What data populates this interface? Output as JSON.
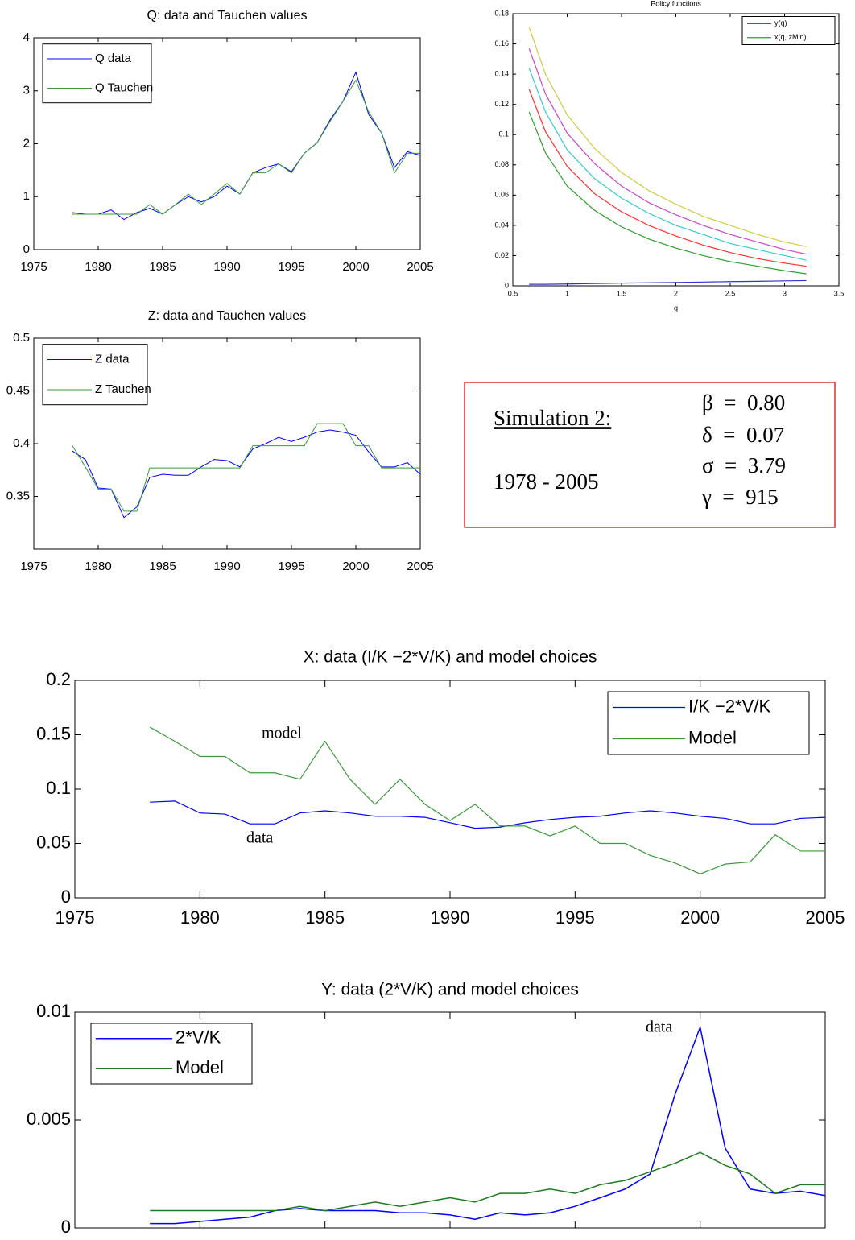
{
  "chart_data": [
    {
      "type": "line",
      "title": "Q: data and Tauchen values",
      "x": [
        1978,
        1979,
        1980,
        1981,
        1982,
        1983,
        1984,
        1985,
        1986,
        1987,
        1988,
        1989,
        1990,
        1991,
        1992,
        1993,
        1994,
        1995,
        1996,
        1997,
        1998,
        1999,
        2000,
        2001,
        2002,
        2003,
        2004,
        2005
      ],
      "series": [
        {
          "name": "Q data",
          "color": "#0000ff",
          "values": [
            0.7,
            0.67,
            0.67,
            0.75,
            0.57,
            0.7,
            0.78,
            0.67,
            0.85,
            1.0,
            0.9,
            1.0,
            1.2,
            1.05,
            1.45,
            1.55,
            1.62,
            1.47,
            1.82,
            2.02,
            2.45,
            2.8,
            3.35,
            2.55,
            2.2,
            1.55,
            1.85,
            1.78
          ]
        },
        {
          "name": "Q Tauchen",
          "color": "#3a9a3a",
          "values": [
            0.67,
            0.67,
            0.67,
            0.67,
            0.67,
            0.67,
            0.85,
            0.67,
            0.85,
            1.05,
            0.85,
            1.05,
            1.25,
            1.05,
            1.45,
            1.45,
            1.62,
            1.45,
            1.82,
            2.02,
            2.42,
            2.8,
            3.2,
            2.6,
            2.2,
            1.45,
            1.82,
            1.82
          ]
        }
      ],
      "xlim": [
        1975,
        2005
      ],
      "xticks": [
        1975,
        1980,
        1985,
        1990,
        1995,
        2000,
        2005
      ],
      "ylim": [
        0,
        4
      ],
      "yticks": [
        0,
        1,
        2,
        3,
        4
      ],
      "legend": "upper left",
      "grid": false
    },
    {
      "type": "line",
      "title": "Policy functions",
      "x_label": "q",
      "x": [
        0.65,
        0.8,
        1,
        1.25,
        1.5,
        1.75,
        2,
        2.25,
        2.5,
        2.75,
        3,
        3.2
      ],
      "series": [
        {
          "name": "y(q)",
          "color": "#3333cc",
          "values": [
            0.001,
            0.001,
            0.0012,
            0.0015,
            0.0018,
            0.002,
            0.0022,
            0.0025,
            0.0028,
            0.003,
            0.0033,
            0.0035
          ]
        },
        {
          "name": "x(q, zMin)",
          "color": "#2e9e2e",
          "values": [
            0.115,
            0.088,
            0.066,
            0.05,
            0.039,
            0.031,
            0.025,
            0.02,
            0.016,
            0.013,
            0.01,
            0.008
          ]
        },
        {
          "color": "#ff3030",
          "values": [
            0.13,
            0.102,
            0.079,
            0.061,
            0.049,
            0.04,
            0.033,
            0.027,
            0.022,
            0.018,
            0.015,
            0.013
          ]
        },
        {
          "color": "#33cccc",
          "values": [
            0.144,
            0.115,
            0.09,
            0.071,
            0.058,
            0.048,
            0.04,
            0.034,
            0.028,
            0.024,
            0.02,
            0.017
          ]
        },
        {
          "color": "#cc44cc",
          "values": [
            0.157,
            0.127,
            0.101,
            0.081,
            0.066,
            0.055,
            0.047,
            0.04,
            0.034,
            0.029,
            0.024,
            0.021
          ]
        },
        {
          "color": "#cccc44",
          "values": [
            0.171,
            0.14,
            0.113,
            0.091,
            0.075,
            0.063,
            0.054,
            0.046,
            0.04,
            0.034,
            0.029,
            0.026
          ]
        }
      ],
      "xlim": [
        0.5,
        3.5
      ],
      "xticks": [
        0.5,
        1,
        1.5,
        2,
        2.5,
        3,
        3.5
      ],
      "ylim": [
        0,
        0.18
      ],
      "yticks": [
        0,
        0.02,
        0.04,
        0.06,
        0.08,
        0.1,
        0.12,
        0.14,
        0.16,
        0.18
      ],
      "legend": "upper right",
      "grid": false
    },
    {
      "type": "line",
      "title": "Z: data and Tauchen values",
      "x": [
        1978,
        1979,
        1980,
        1981,
        1982,
        1983,
        1984,
        1985,
        1986,
        1987,
        1988,
        1989,
        1990,
        1991,
        1992,
        1993,
        1994,
        1995,
        1996,
        1997,
        1998,
        1999,
        2000,
        2001,
        2002,
        2003,
        2004,
        2005
      ],
      "series": [
        {
          "name": "Z data",
          "color": "#0000ff",
          "values": [
            0.393,
            0.385,
            0.358,
            0.357,
            0.33,
            0.34,
            0.368,
            0.371,
            0.37,
            0.37,
            0.378,
            0.385,
            0.384,
            0.378,
            0.395,
            0.4,
            0.406,
            0.402,
            0.406,
            0.411,
            0.413,
            0.411,
            0.408,
            0.392,
            0.378,
            0.378,
            0.382,
            0.371
          ]
        },
        {
          "name": "Z Tauchen",
          "color": "#3a9a3a",
          "values": [
            0.398,
            0.378,
            0.357,
            0.357,
            0.336,
            0.336,
            0.377,
            0.377,
            0.377,
            0.377,
            0.377,
            0.377,
            0.377,
            0.377,
            0.398,
            0.398,
            0.398,
            0.398,
            0.398,
            0.419,
            0.419,
            0.419,
            0.398,
            0.398,
            0.377,
            0.377,
            0.377,
            0.377
          ]
        }
      ],
      "xlim": [
        1975,
        2005
      ],
      "xticks": [
        1975,
        1980,
        1985,
        1990,
        1995,
        2000,
        2005
      ],
      "ylim": [
        0.3,
        0.5
      ],
      "yticks": [
        0.35,
        0.4,
        0.45,
        0.5
      ],
      "legend": "upper left",
      "grid": false
    },
    {
      "type": "line",
      "title": "X: data (I/K −2*V/K) and model choices",
      "x": [
        1978,
        1979,
        1980,
        1981,
        1982,
        1983,
        1984,
        1985,
        1986,
        1987,
        1988,
        1989,
        1990,
        1991,
        1992,
        1993,
        1994,
        1995,
        1996,
        1997,
        1998,
        1999,
        2000,
        2001,
        2002,
        2003,
        2004,
        2005
      ],
      "series": [
        {
          "name": "I/K −2*V/K",
          "color": "#0000ff",
          "values": [
            0.088,
            0.089,
            0.078,
            0.077,
            0.068,
            0.068,
            0.078,
            0.08,
            0.078,
            0.075,
            0.075,
            0.074,
            0.069,
            0.064,
            0.065,
            0.069,
            0.072,
            0.074,
            0.075,
            0.078,
            0.08,
            0.078,
            0.075,
            0.073,
            0.068,
            0.068,
            0.073,
            0.074
          ]
        },
        {
          "name": "Model",
          "color": "#3a9a3a",
          "values": [
            0.157,
            0.144,
            0.13,
            0.13,
            0.115,
            0.115,
            0.109,
            0.144,
            0.109,
            0.086,
            0.109,
            0.086,
            0.071,
            0.086,
            0.066,
            0.066,
            0.057,
            0.066,
            0.05,
            0.05,
            0.039,
            0.032,
            0.022,
            0.031,
            0.033,
            0.058,
            0.043,
            0.043
          ]
        }
      ],
      "xlim": [
        1975,
        2005
      ],
      "xticks": [
        1975,
        1980,
        1985,
        1990,
        1995,
        2000,
        2005
      ],
      "ylim": [
        0,
        0.2
      ],
      "yticks": [
        0,
        0.05,
        0.1,
        0.15,
        0.2
      ],
      "legend": "upper right",
      "grid": false,
      "annotations": [
        "model",
        "data"
      ]
    },
    {
      "type": "line",
      "title": "Y: data (2*V/K) and model choices",
      "x": [
        1978,
        1979,
        1980,
        1981,
        1982,
        1983,
        1984,
        1985,
        1986,
        1987,
        1988,
        1989,
        1990,
        1991,
        1992,
        1993,
        1994,
        1995,
        1996,
        1997,
        1998,
        1999,
        2000,
        2001,
        2002,
        2003,
        2004,
        2005
      ],
      "series": [
        {
          "name": "2*V/K",
          "color": "#0000ff",
          "values": [
            0.0002,
            0.0002,
            0.0003,
            0.0004,
            0.0005,
            0.0008,
            0.0009,
            0.0008,
            0.0008,
            0.0008,
            0.0007,
            0.0007,
            0.0006,
            0.0004,
            0.0007,
            0.0006,
            0.0007,
            0.001,
            0.0014,
            0.0018,
            0.0025,
            0.0062,
            0.0093,
            0.0037,
            0.0018,
            0.0016,
            0.0017,
            0.0015
          ]
        },
        {
          "name": "Model",
          "color": "#1f7a1f",
          "values": [
            0.0008,
            0.0008,
            0.0008,
            0.0008,
            0.0008,
            0.0008,
            0.001,
            0.0008,
            0.001,
            0.0012,
            0.001,
            0.0012,
            0.0014,
            0.0012,
            0.0016,
            0.0016,
            0.0018,
            0.0016,
            0.002,
            0.0022,
            0.0026,
            0.003,
            0.0035,
            0.0029,
            0.0025,
            0.0016,
            0.002,
            0.002
          ]
        }
      ],
      "xlim": [
        1975,
        2005
      ],
      "xticks": [
        1975,
        1980,
        1985,
        1990,
        1995,
        2000,
        2005
      ],
      "ylim": [
        0,
        0.01
      ],
      "yticks": [
        0,
        0.005,
        0.01
      ],
      "legend": "upper left",
      "grid": false,
      "annotations": [
        "data"
      ]
    }
  ],
  "parameter_box": {
    "title": "Simulation 2:",
    "period": "1978 - 2005",
    "parameters": [
      "β  =  0.80",
      "δ  =  0.07",
      "σ  =  3.79",
      "γ  =  915"
    ]
  }
}
